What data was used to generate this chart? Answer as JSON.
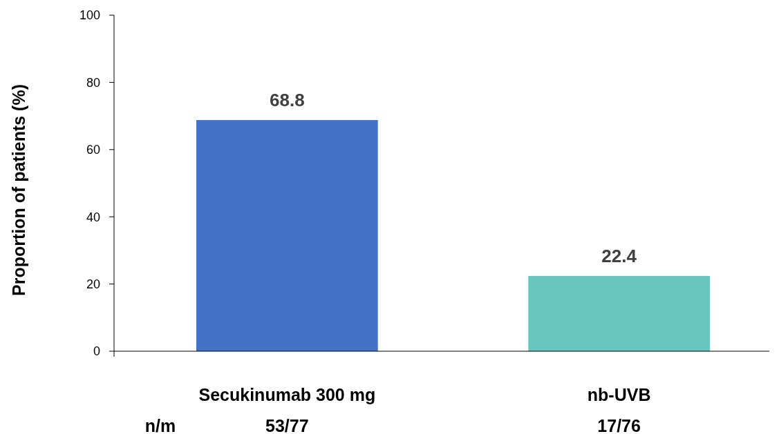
{
  "chart_data": {
    "type": "bar",
    "ylabel": "Proportion of patients (%)",
    "categories": [
      "Secukinumab 300 mg",
      "nb-UVB"
    ],
    "values": [
      68.8,
      22.4
    ],
    "colors": [
      "#4472c4",
      "#68c6be"
    ],
    "ylim": [
      0,
      100
    ],
    "yticks": [
      0,
      20,
      40,
      60,
      80,
      100
    ],
    "data_labels": true,
    "grid": false,
    "annotations": [
      "n/m",
      "53/77",
      "17/76"
    ]
  }
}
